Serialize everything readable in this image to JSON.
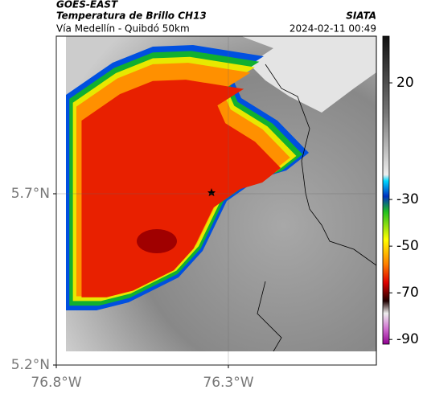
{
  "header": {
    "source": "GOES-EAST",
    "title": "Temperatura de Brillo CH13",
    "org": "SIATA",
    "subtitle": "Vía Medellín - Quibdó 50km",
    "timestamp": "2024-02-11 00:49"
  },
  "map": {
    "xlim": [
      -76.8,
      -75.87
    ],
    "ylim": [
      5.2,
      6.16
    ],
    "xticks": [
      {
        "value": -76.8,
        "label": "76.8°W"
      },
      {
        "value": -76.3,
        "label": "76.3°W"
      }
    ],
    "yticks": [
      {
        "value": 5.7,
        "label": "5.7°N"
      },
      {
        "value": 5.2,
        "label": "5.2°N"
      }
    ]
  },
  "colorbar": {
    "lim": [
      40,
      -92
    ],
    "ticks": [
      20,
      -30,
      -50,
      -70,
      -90
    ]
  }
}
